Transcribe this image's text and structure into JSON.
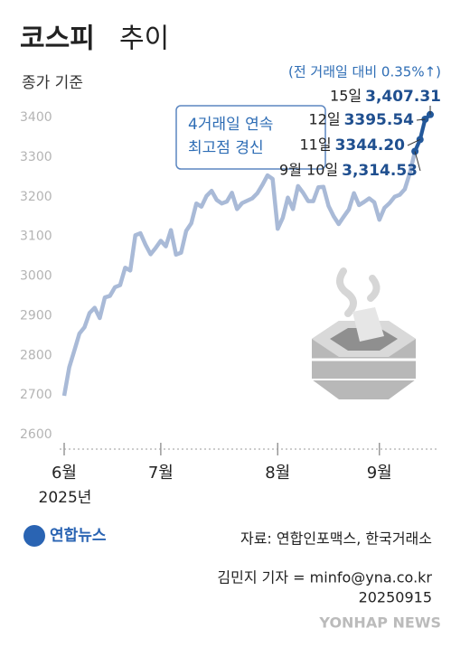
{
  "chart_data": {
    "type": "line",
    "title": "코스피",
    "title_suffix": "추이",
    "subtitle": "종가 기준",
    "change_note": "(전 거래일 대비 0.35%↑)",
    "callout": [
      "4거래일 연속",
      "최고점 경신"
    ],
    "year_label": "2025년",
    "source": "자료: 연합인포맥스, 한국거래소",
    "credit": "김민지 기자 = minfo@yna.co.kr",
    "date": "20250915",
    "logo": "연합뉴스",
    "watermark": "YONHAP NEWS",
    "color": "#a9bad7",
    "highlight_color": "#23589a",
    "ylim": [
      2600,
      3400
    ],
    "yticks": [
      2600,
      2700,
      2800,
      2900,
      3000,
      3100,
      3200,
      3300,
      3400
    ],
    "categories": [
      "6월",
      null,
      null,
      null,
      null,
      null,
      null,
      null,
      null,
      null,
      null,
      null,
      null,
      null,
      null,
      null,
      null,
      null,
      null,
      "7월",
      null,
      null,
      null,
      null,
      null,
      null,
      null,
      null,
      null,
      null,
      null,
      null,
      null,
      null,
      null,
      null,
      null,
      null,
      null,
      null,
      null,
      null,
      "8월",
      null,
      null,
      null,
      null,
      null,
      null,
      null,
      null,
      null,
      null,
      null,
      null,
      null,
      null,
      null,
      null,
      null,
      null,
      null,
      "9월",
      null,
      null,
      null,
      null,
      null,
      null,
      null,
      null,
      null,
      null
    ],
    "values": [
      2698,
      2770,
      2812,
      2855,
      2871,
      2907,
      2920,
      2894,
      2946,
      2950,
      2972,
      2977,
      3021,
      3014,
      3103,
      3108,
      3079,
      3055,
      3071,
      3089,
      3075,
      3116,
      3054,
      3059,
      3114,
      3133,
      3183,
      3175,
      3202,
      3215,
      3192,
      3183,
      3188,
      3210,
      3169,
      3184,
      3190,
      3196,
      3209,
      3230,
      3254,
      3245,
      3119,
      3147,
      3198,
      3169,
      3227,
      3210,
      3189,
      3189,
      3224,
      3225,
      3177,
      3151,
      3131,
      3150,
      3168,
      3209,
      3179,
      3187,
      3196,
      3186,
      3142,
      3172,
      3184,
      3200,
      3205,
      3219,
      3260,
      3314.53,
      3344.2,
      3395.54,
      3407.31
    ],
    "date_labels": [
      null,
      null,
      null,
      null,
      null,
      null,
      null,
      null,
      null,
      null,
      null,
      null,
      null,
      null,
      null,
      null,
      null,
      null,
      null,
      null,
      null,
      null,
      null,
      null,
      null,
      null,
      null,
      null,
      null,
      null,
      null,
      null,
      null,
      null,
      null,
      null,
      null,
      null,
      null,
      null,
      null,
      null,
      null,
      null,
      null,
      null,
      null,
      null,
      null,
      null,
      null,
      null,
      null,
      null,
      null,
      null,
      null,
      null,
      null,
      null,
      null,
      null,
      null,
      null,
      null,
      null,
      null,
      null,
      null,
      "9월 10일",
      "11일",
      "12일",
      "15일"
    ],
    "value_labels": [
      null,
      null,
      null,
      null,
      null,
      null,
      null,
      null,
      null,
      null,
      null,
      null,
      null,
      null,
      null,
      null,
      null,
      null,
      null,
      null,
      null,
      null,
      null,
      null,
      null,
      null,
      null,
      null,
      null,
      null,
      null,
      null,
      null,
      null,
      null,
      null,
      null,
      null,
      null,
      null,
      null,
      null,
      null,
      null,
      null,
      null,
      null,
      null,
      null,
      null,
      null,
      null,
      null,
      null,
      null,
      null,
      null,
      null,
      null,
      null,
      null,
      null,
      null,
      null,
      null,
      null,
      null,
      null,
      null,
      "3,314.53",
      "3344.20",
      "3395.54",
      "3,407.31"
    ]
  }
}
